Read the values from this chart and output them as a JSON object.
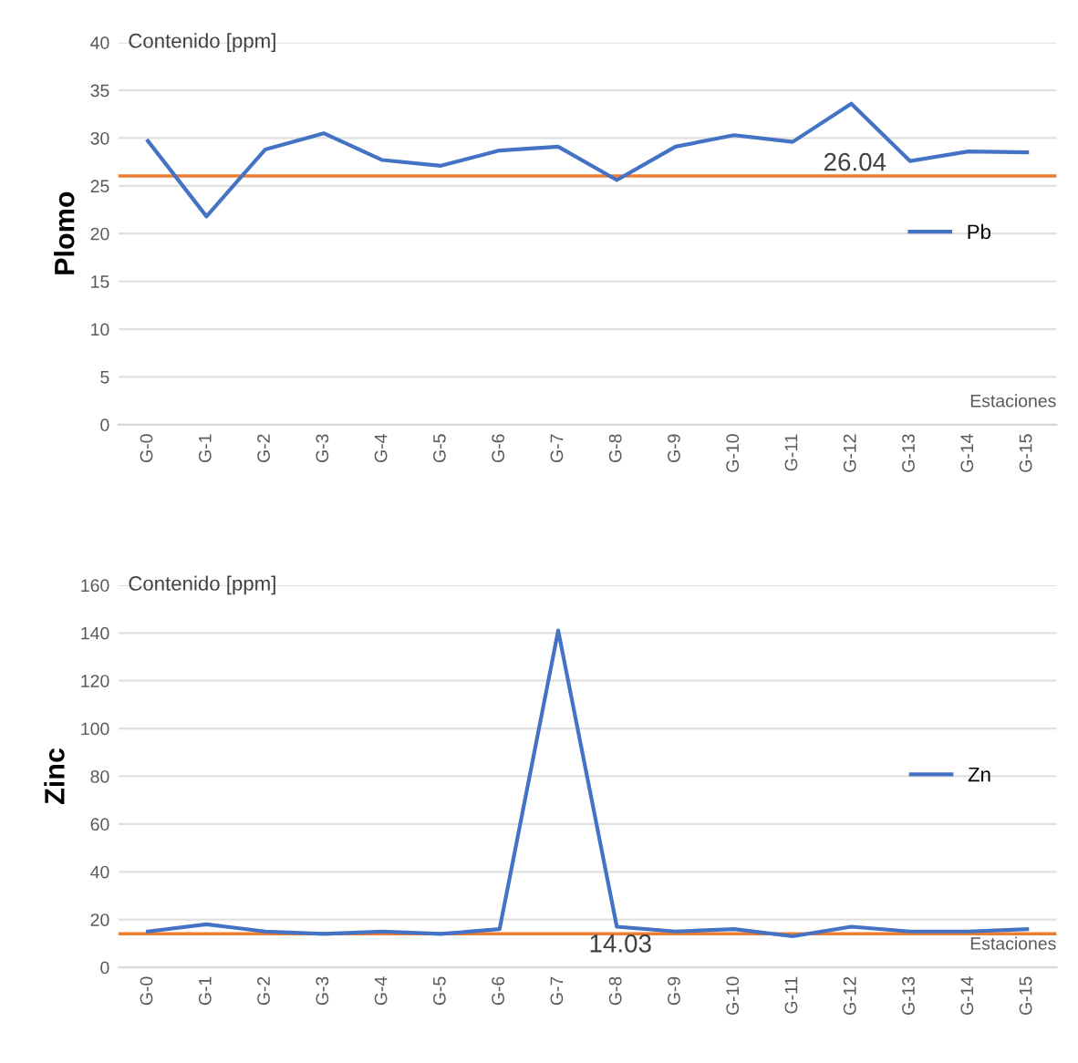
{
  "chart_data": [
    {
      "type": "line",
      "ylabel": "Plomo",
      "xlabel": "Estaciones",
      "annotations": [
        "Contenido [ppm]"
      ],
      "categories": [
        "G-0",
        "G-1",
        "G-2",
        "G-3",
        "G-4",
        "G-5",
        "G-6",
        "G-7",
        "G-8",
        "G-9",
        "G-10",
        "G-11",
        "G-12",
        "G-13",
        "G-14",
        "G-15"
      ],
      "series": [
        {
          "name": "Pb",
          "color": "#4472c4",
          "values": [
            29.7,
            21.8,
            28.8,
            30.5,
            27.7,
            27.1,
            28.7,
            29.1,
            25.6,
            29.1,
            30.3,
            29.6,
            33.6,
            27.6,
            28.6,
            28.5
          ]
        }
      ],
      "ref_lines": [
        {
          "axis": "y",
          "value": 26.04,
          "label": "26.04",
          "color": "#ed7d31"
        }
      ],
      "ylim": [
        0,
        40
      ],
      "yticks": [
        0,
        5,
        10,
        15,
        20,
        25,
        30,
        35,
        40
      ],
      "grid": "y",
      "legend": "right"
    },
    {
      "type": "line",
      "ylabel": "Zinc",
      "xlabel": "Estaciones",
      "annotations": [
        "Contenido [ppm]"
      ],
      "categories": [
        "G-0",
        "G-1",
        "G-2",
        "G-3",
        "G-4",
        "G-5",
        "G-6",
        "G-7",
        "G-8",
        "G-9",
        "G-10",
        "G-11",
        "G-12",
        "G-13",
        "G-14",
        "G-15"
      ],
      "series": [
        {
          "name": "Zn",
          "color": "#4472c4",
          "values": [
            15,
            18,
            15,
            14,
            15,
            14,
            16,
            141,
            17,
            15,
            16,
            13,
            17,
            15,
            15,
            16
          ]
        }
      ],
      "ref_lines": [
        {
          "axis": "y",
          "value": 14.03,
          "label": "14.03",
          "color": "#ed7d31"
        }
      ],
      "ylim": [
        0,
        160
      ],
      "yticks": [
        0,
        20,
        40,
        60,
        80,
        100,
        120,
        140,
        160
      ],
      "grid": "y",
      "legend": "right"
    }
  ]
}
